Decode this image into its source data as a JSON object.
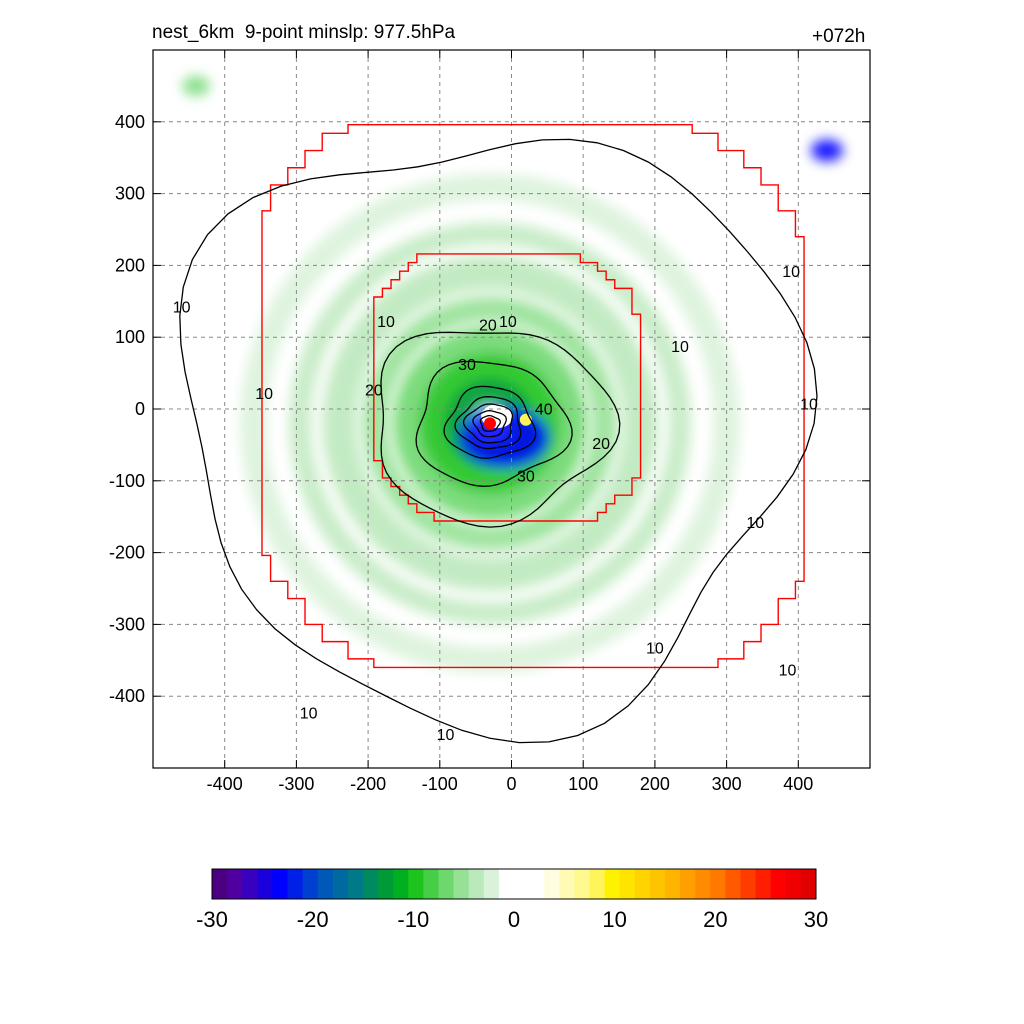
{
  "title": "nest_6km  9-point minslp: 977.5hPa",
  "forecast_hour": "+072h",
  "chart_data": {
    "type": "heatmap",
    "title": "nest_6km  9-point minslp: 977.5hPa",
    "annotation": "+072h",
    "xlabel": "",
    "ylabel": "",
    "xlim": [
      -500,
      500
    ],
    "ylim": [
      -500,
      500
    ],
    "x_ticks": [
      -400,
      -300,
      -200,
      -100,
      0,
      100,
      200,
      300,
      400
    ],
    "y_ticks": [
      400,
      300,
      200,
      100,
      0,
      -100,
      -200,
      -300,
      -400
    ],
    "x_tick_labels": [
      "-400",
      "-300",
      "-200",
      "-100",
      "0",
      "100",
      "200",
      "300",
      "400"
    ],
    "y_tick_labels": [
      "400",
      "300",
      "200",
      "100",
      "0",
      "-100",
      "-200",
      "-300",
      "-400"
    ],
    "grid": true,
    "storm_center": {
      "x": -30,
      "y": -20,
      "color": "#ff0000"
    },
    "contour_levels": [
      10,
      20,
      30,
      40
    ],
    "contour_labels": [
      {
        "text": "10",
        "x": -175,
        "y": 120
      },
      {
        "text": "10",
        "x": -5,
        "y": 120
      },
      {
        "text": "10",
        "x": 235,
        "y": 85
      },
      {
        "text": "10",
        "x": -345,
        "y": 20
      },
      {
        "text": "10",
        "x": 390,
        "y": 190
      },
      {
        "text": "10",
        "x": -460,
        "y": 140
      },
      {
        "text": "10",
        "x": 415,
        "y": 5
      },
      {
        "text": "10",
        "x": 340,
        "y": -160
      },
      {
        "text": "10",
        "x": 200,
        "y": -335
      },
      {
        "text": "10",
        "x": 385,
        "y": -365
      },
      {
        "text": "10",
        "x": -283,
        "y": -425
      },
      {
        "text": "10",
        "x": -92,
        "y": -455
      },
      {
        "text": "20",
        "x": -33,
        "y": 115
      },
      {
        "text": "20",
        "x": -192,
        "y": 25
      },
      {
        "text": "20",
        "x": 125,
        "y": -50
      },
      {
        "text": "30",
        "x": -62,
        "y": 60
      },
      {
        "text": "30",
        "x": 20,
        "y": -95
      },
      {
        "text": "40",
        "x": 45,
        "y": -2
      }
    ],
    "colorbar": {
      "min": -30,
      "max": 30,
      "ticks": [
        -30,
        -20,
        -10,
        0,
        10,
        20,
        30
      ],
      "tick_labels": [
        "-30",
        "-20",
        "-10",
        "0",
        "10",
        "20",
        "30"
      ],
      "colors": [
        "#4b0082",
        "#5000a0",
        "#3a00c0",
        "#1a00dc",
        "#0000ff",
        "#0020e8",
        "#0040d0",
        "#0058b8",
        "#006aa0",
        "#007a88",
        "#008a60",
        "#009a38",
        "#00b020",
        "#1ec41e",
        "#46ce46",
        "#6ed86e",
        "#96e196",
        "#bce9bc",
        "#daf2da",
        "#ffffff",
        "#ffffff",
        "#ffffff",
        "#fffde0",
        "#fffbb4",
        "#fff990",
        "#fff55a",
        "#fff200",
        "#ffe400",
        "#ffd400",
        "#ffc400",
        "#ffb400",
        "#ffa000",
        "#ff8c00",
        "#ff7800",
        "#ff5a00",
        "#ff3c00",
        "#ff1e00",
        "#ff0000",
        "#f00000",
        "#e00000"
      ]
    },
    "grid_boundaries": [
      {
        "name": "outer",
        "color": "#ff0000",
        "half_width": 380
      },
      {
        "name": "inner",
        "color": "#ff0000",
        "half_width": 185
      }
    ]
  }
}
